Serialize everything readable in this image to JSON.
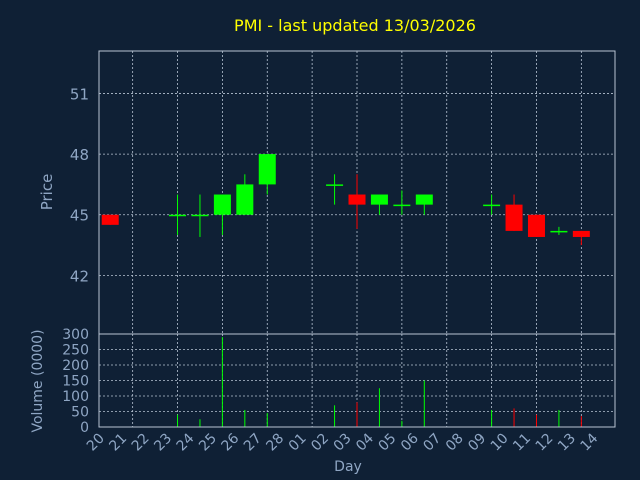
{
  "colors": {
    "background": "#0f2035",
    "axis_text": "#8fa6c4",
    "grid": "#b8c4d4",
    "title": "#ffff00",
    "up": "#00ff00",
    "down": "#ff0000"
  },
  "chart_data": [
    {
      "type": "candlestick",
      "title": "PMI - last updated 13/03/2026",
      "ylabel": "Price",
      "ylim": [
        39.1,
        53.1
      ],
      "yticks": [
        42,
        45,
        48,
        51
      ],
      "grid": true,
      "candles": [
        {
          "x": "20",
          "open": 45.0,
          "high": 45.0,
          "low": 44.5,
          "close": 44.5
        },
        {
          "x": "23",
          "open": 45.0,
          "high": 46.0,
          "low": 44.0,
          "close": 45.0
        },
        {
          "x": "24",
          "open": 45.0,
          "high": 46.0,
          "low": 43.9,
          "close": 45.0
        },
        {
          "x": "25",
          "open": 45.0,
          "high": 46.0,
          "low": 44.0,
          "close": 46.0
        },
        {
          "x": "26",
          "open": 45.0,
          "high": 47.0,
          "low": 45.0,
          "close": 46.5
        },
        {
          "x": "27",
          "open": 46.5,
          "high": 48.0,
          "low": 46.0,
          "close": 48.0
        },
        {
          "x": "02",
          "open": 46.5,
          "high": 47.0,
          "low": 45.5,
          "close": 46.5
        },
        {
          "x": "03",
          "open": 46.0,
          "high": 47.0,
          "low": 44.3,
          "close": 45.5
        },
        {
          "x": "04",
          "open": 45.5,
          "high": 46.0,
          "low": 45.0,
          "close": 46.0
        },
        {
          "x": "05",
          "open": 45.5,
          "high": 46.2,
          "low": 45.0,
          "close": 45.5
        },
        {
          "x": "06",
          "open": 45.5,
          "high": 46.0,
          "low": 45.0,
          "close": 46.0
        },
        {
          "x": "09",
          "open": 45.5,
          "high": 46.0,
          "low": 45.0,
          "close": 45.5
        },
        {
          "x": "10",
          "open": 45.5,
          "high": 46.0,
          "low": 44.2,
          "close": 44.2
        },
        {
          "x": "11",
          "open": 45.0,
          "high": 45.0,
          "low": 43.9,
          "close": 43.9
        },
        {
          "x": "12",
          "open": 44.2,
          "high": 44.4,
          "low": 44.0,
          "close": 44.2
        },
        {
          "x": "13",
          "open": 44.2,
          "high": 44.2,
          "low": 43.5,
          "close": 43.9
        }
      ]
    },
    {
      "type": "bar",
      "ylabel": "Volume (0000)",
      "xlabel": "Day",
      "ylim": [
        0,
        300
      ],
      "yticks": [
        0,
        50,
        100,
        150,
        200,
        250,
        300
      ],
      "grid": true,
      "categories": [
        "20",
        "21",
        "22",
        "23",
        "24",
        "25",
        "26",
        "27",
        "28",
        "01",
        "02",
        "03",
        "04",
        "05",
        "06",
        "07",
        "08",
        "09",
        "10",
        "11",
        "12",
        "13",
        "14"
      ],
      "bars": [
        {
          "x": "23",
          "value": 40,
          "direction": "flat"
        },
        {
          "x": "24",
          "value": 25,
          "direction": "flat"
        },
        {
          "x": "25",
          "value": 290,
          "direction": "up"
        },
        {
          "x": "26",
          "value": 55,
          "direction": "up"
        },
        {
          "x": "27",
          "value": 45,
          "direction": "up"
        },
        {
          "x": "02",
          "value": 70,
          "direction": "up"
        },
        {
          "x": "03",
          "value": 80,
          "direction": "down"
        },
        {
          "x": "04",
          "value": 125,
          "direction": "up"
        },
        {
          "x": "05",
          "value": 20,
          "direction": "flat"
        },
        {
          "x": "06",
          "value": 150,
          "direction": "up"
        },
        {
          "x": "09",
          "value": 55,
          "direction": "flat"
        },
        {
          "x": "10",
          "value": 60,
          "direction": "down"
        },
        {
          "x": "11",
          "value": 40,
          "direction": "down"
        },
        {
          "x": "12",
          "value": 55,
          "direction": "flat"
        },
        {
          "x": "13",
          "value": 35,
          "direction": "down"
        }
      ]
    }
  ]
}
